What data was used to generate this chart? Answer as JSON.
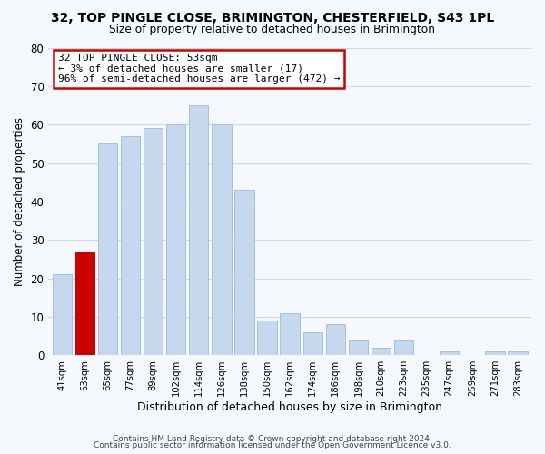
{
  "title": "32, TOP PINGLE CLOSE, BRIMINGTON, CHESTERFIELD, S43 1PL",
  "subtitle": "Size of property relative to detached houses in Brimington",
  "xlabel": "Distribution of detached houses by size in Brimington",
  "ylabel": "Number of detached properties",
  "bar_labels": [
    "41sqm",
    "53sqm",
    "65sqm",
    "77sqm",
    "89sqm",
    "102sqm",
    "114sqm",
    "126sqm",
    "138sqm",
    "150sqm",
    "162sqm",
    "174sqm",
    "186sqm",
    "198sqm",
    "210sqm",
    "223sqm",
    "235sqm",
    "247sqm",
    "259sqm",
    "271sqm",
    "283sqm"
  ],
  "bar_values": [
    21,
    27,
    55,
    57,
    59,
    60,
    65,
    60,
    43,
    9,
    11,
    6,
    8,
    4,
    2,
    4,
    0,
    1,
    0,
    1,
    1
  ],
  "highlight_index": 1,
  "highlight_color": "#cc0000",
  "normal_color": "#c5d8ed",
  "bar_edge_color": "#a8c0de",
  "ylim": [
    0,
    80
  ],
  "yticks": [
    0,
    10,
    20,
    30,
    40,
    50,
    60,
    70,
    80
  ],
  "annotation_line1": "32 TOP PINGLE CLOSE: 53sqm",
  "annotation_line2": "← 3% of detached houses are smaller (17)",
  "annotation_line3": "96% of semi-detached houses are larger (472) →",
  "footer1": "Contains HM Land Registry data © Crown copyright and database right 2024.",
  "footer2": "Contains public sector information licensed under the Open Government Licence v3.0.",
  "background_color": "#f5f8fc",
  "grid_color": "#d0d8e8",
  "ann_box_color": "#cc0000"
}
